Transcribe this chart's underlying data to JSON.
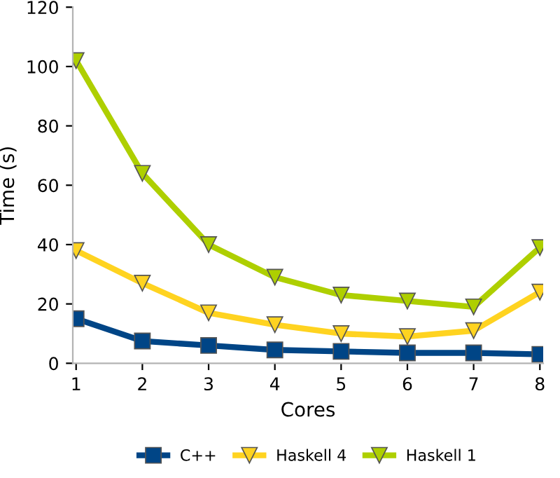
{
  "chart_data": {
    "type": "line",
    "xlabel": "Cores",
    "ylabel": "Time (s)",
    "categories": [
      "1",
      "2",
      "3",
      "4",
      "5",
      "6",
      "7",
      "8"
    ],
    "series": [
      {
        "name": "C++",
        "color": "#004586",
        "marker": "square",
        "values": [
          15,
          7.5,
          6,
          4.5,
          4,
          3.5,
          3.5,
          3
        ]
      },
      {
        "name": "Haskell 4",
        "color": "#ffd320",
        "marker": "triangle_down",
        "values": [
          38,
          27,
          17,
          13,
          10,
          9,
          11,
          24
        ]
      },
      {
        "name": "Haskell 1",
        "color": "#aecf00",
        "marker": "triangle_down",
        "values": [
          102,
          64,
          40,
          29,
          23,
          21,
          19,
          39
        ]
      }
    ],
    "ylim": [
      0,
      120
    ],
    "yticks": [
      0,
      20,
      40,
      60,
      80,
      100,
      120
    ],
    "grid": false,
    "legend": "bottom"
  }
}
